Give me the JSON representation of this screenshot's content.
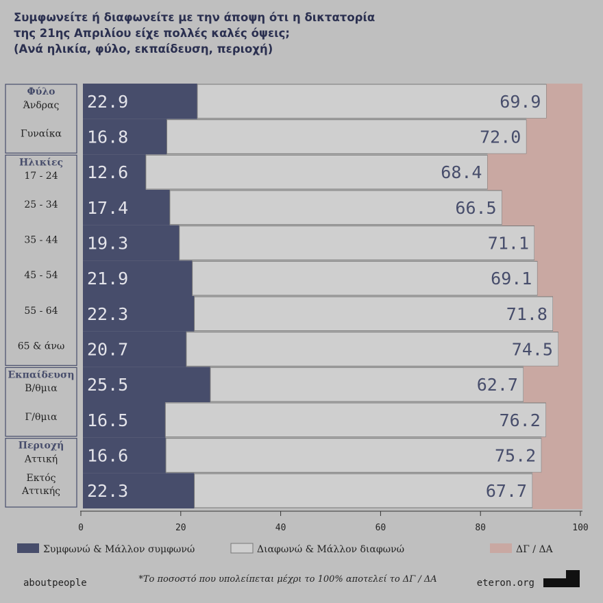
{
  "chart_data": {
    "type": "stacked-bar-horizontal",
    "title": [
      "Συμφωνείτε ή διαφωνείτε με την άποψη ότι η δικτατορία",
      "της 21ης Απριλίου είχε πολλές καλές όψεις;"
    ],
    "subtitle": "(Ανά ηλικία, φύλο, εκπαίδευση, περιοχή)",
    "groups": [
      {
        "name": "Φύλο",
        "categories": [
          "Άνδρας",
          "Γυναίκα"
        ]
      },
      {
        "name": "Ηλικίες",
        "categories": [
          "17 - 24",
          "25 - 34",
          "35 - 44",
          "45 - 54",
          "55 - 64",
          "65 & άνω"
        ]
      },
      {
        "name": "Εκπαίδευση",
        "categories": [
          "Β/θμια",
          "Γ/θμια"
        ]
      },
      {
        "name": "Περιοχή",
        "categories": [
          "Αττική",
          "Εκτός Αττικής"
        ]
      }
    ],
    "series": [
      {
        "name": "Συμφωνώ & Μάλλον συμφωνώ",
        "color": "#474d6b",
        "label_color": "#e4e4ea",
        "values": [
          22.9,
          16.8,
          12.6,
          17.4,
          19.3,
          21.9,
          22.3,
          20.7,
          25.5,
          16.5,
          16.6,
          22.3
        ],
        "value_labels": [
          "22.9",
          "16.8",
          "12.6",
          "17.4",
          "19.3",
          "21.9",
          "22.3",
          "20.7",
          "25.5",
          "16.5",
          "16.6",
          "22.3"
        ]
      },
      {
        "name": "Διαφωνώ & Μάλλον διαφωνώ",
        "color": "#cfcfcf",
        "label_color": "#474d6b",
        "values": [
          69.9,
          72.0,
          68.4,
          66.5,
          71.1,
          69.1,
          71.8,
          74.5,
          62.7,
          76.2,
          75.2,
          67.7
        ],
        "value_labels": [
          "69.9",
          "72.0",
          "68.4",
          "66.5",
          "71.1",
          "69.1",
          "71.8",
          "74.5",
          "62.7",
          "76.2",
          "75.2",
          "67.7"
        ]
      },
      {
        "name": "ΔΓ / ΔΑ",
        "color": "#c9a8a2",
        "values": [
          7.2,
          11.2,
          19.0,
          16.1,
          9.6,
          9.0,
          5.9,
          4.8,
          11.8,
          7.3,
          8.2,
          10.0
        ]
      }
    ],
    "xlim": [
      0,
      100
    ],
    "xticks": [
      0,
      20,
      40,
      60,
      80,
      100
    ],
    "note": "*Το ποσοστό που υπολείπεται μέχρι το 100% αποτελεί το ΔΓ / ΔΑ",
    "source_left": "aboutpeople",
    "source_right": "eteron.org"
  }
}
